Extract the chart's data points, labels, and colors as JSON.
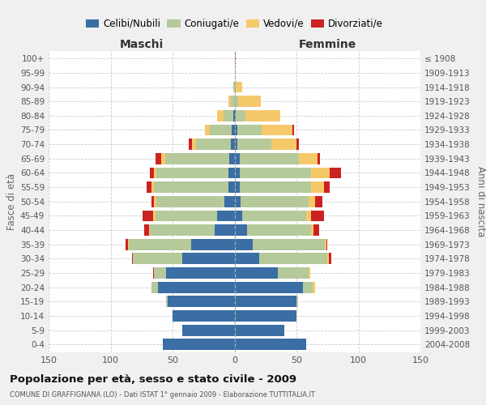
{
  "age_groups": [
    "0-4",
    "5-9",
    "10-14",
    "15-19",
    "20-24",
    "25-29",
    "30-34",
    "35-39",
    "40-44",
    "45-49",
    "50-54",
    "55-59",
    "60-64",
    "65-69",
    "70-74",
    "75-79",
    "80-84",
    "85-89",
    "90-94",
    "95-99",
    "100+"
  ],
  "year_labels": [
    "2004-2008",
    "1999-2003",
    "1994-1998",
    "1989-1993",
    "1984-1988",
    "1979-1983",
    "1974-1978",
    "1969-1973",
    "1964-1968",
    "1959-1963",
    "1954-1958",
    "1949-1953",
    "1944-1948",
    "1939-1943",
    "1934-1938",
    "1929-1933",
    "1924-1928",
    "1919-1923",
    "1914-1918",
    "1909-1913",
    "≤ 1908"
  ],
  "males_celibe": [
    58,
    42,
    50,
    54,
    62,
    55,
    42,
    35,
    16,
    14,
    8,
    5,
    5,
    4,
    3,
    2,
    1,
    0,
    0,
    0,
    0
  ],
  "males_coniugato": [
    0,
    0,
    0,
    1,
    5,
    10,
    40,
    50,
    52,
    50,
    55,
    60,
    58,
    52,
    28,
    18,
    8,
    3,
    1,
    0,
    0
  ],
  "males_vedovo": [
    0,
    0,
    0,
    0,
    0,
    0,
    0,
    1,
    1,
    2,
    2,
    2,
    2,
    3,
    3,
    4,
    5,
    2,
    0,
    0,
    0
  ],
  "males_divorziato": [
    0,
    0,
    0,
    0,
    0,
    1,
    1,
    2,
    4,
    8,
    2,
    4,
    3,
    5,
    3,
    0,
    0,
    0,
    0,
    0,
    0
  ],
  "females_nubile": [
    58,
    40,
    50,
    50,
    55,
    35,
    20,
    15,
    10,
    6,
    5,
    4,
    4,
    4,
    2,
    2,
    1,
    0,
    0,
    0,
    0
  ],
  "females_coniugata": [
    0,
    0,
    0,
    1,
    8,
    25,
    55,
    58,
    52,
    52,
    55,
    58,
    58,
    48,
    28,
    20,
    8,
    3,
    1,
    0,
    0
  ],
  "females_vedova": [
    0,
    0,
    0,
    0,
    2,
    1,
    1,
    1,
    2,
    4,
    5,
    10,
    15,
    15,
    20,
    25,
    28,
    18,
    5,
    1,
    0
  ],
  "females_divorziata": [
    0,
    0,
    0,
    0,
    0,
    0,
    2,
    1,
    4,
    10,
    6,
    5,
    9,
    2,
    2,
    1,
    0,
    0,
    0,
    0,
    1
  ],
  "color_celibe": "#3a6ea5",
  "color_coniugato": "#b5c99a",
  "color_vedovo": "#f5c96a",
  "color_divorziato": "#cc2222",
  "xlim": 150,
  "bg_color": "#f0f0f0",
  "plot_bg": "#ffffff",
  "grid_color": "#cccccc",
  "title": "Popolazione per età, sesso e stato civile - 2009",
  "subtitle": "COMUNE DI GRAFFIGNANA (LO) - Dati ISTAT 1° gennaio 2009 - Elaborazione TUTTITALIA.IT",
  "ylabel_left": "Fasce di età",
  "ylabel_right": "Anni di nascita",
  "label_maschi": "Maschi",
  "label_femmine": "Femmine",
  "legend_labels": [
    "Celibi/Nubili",
    "Coniugati/e",
    "Vedovi/e",
    "Divorziati/e"
  ]
}
